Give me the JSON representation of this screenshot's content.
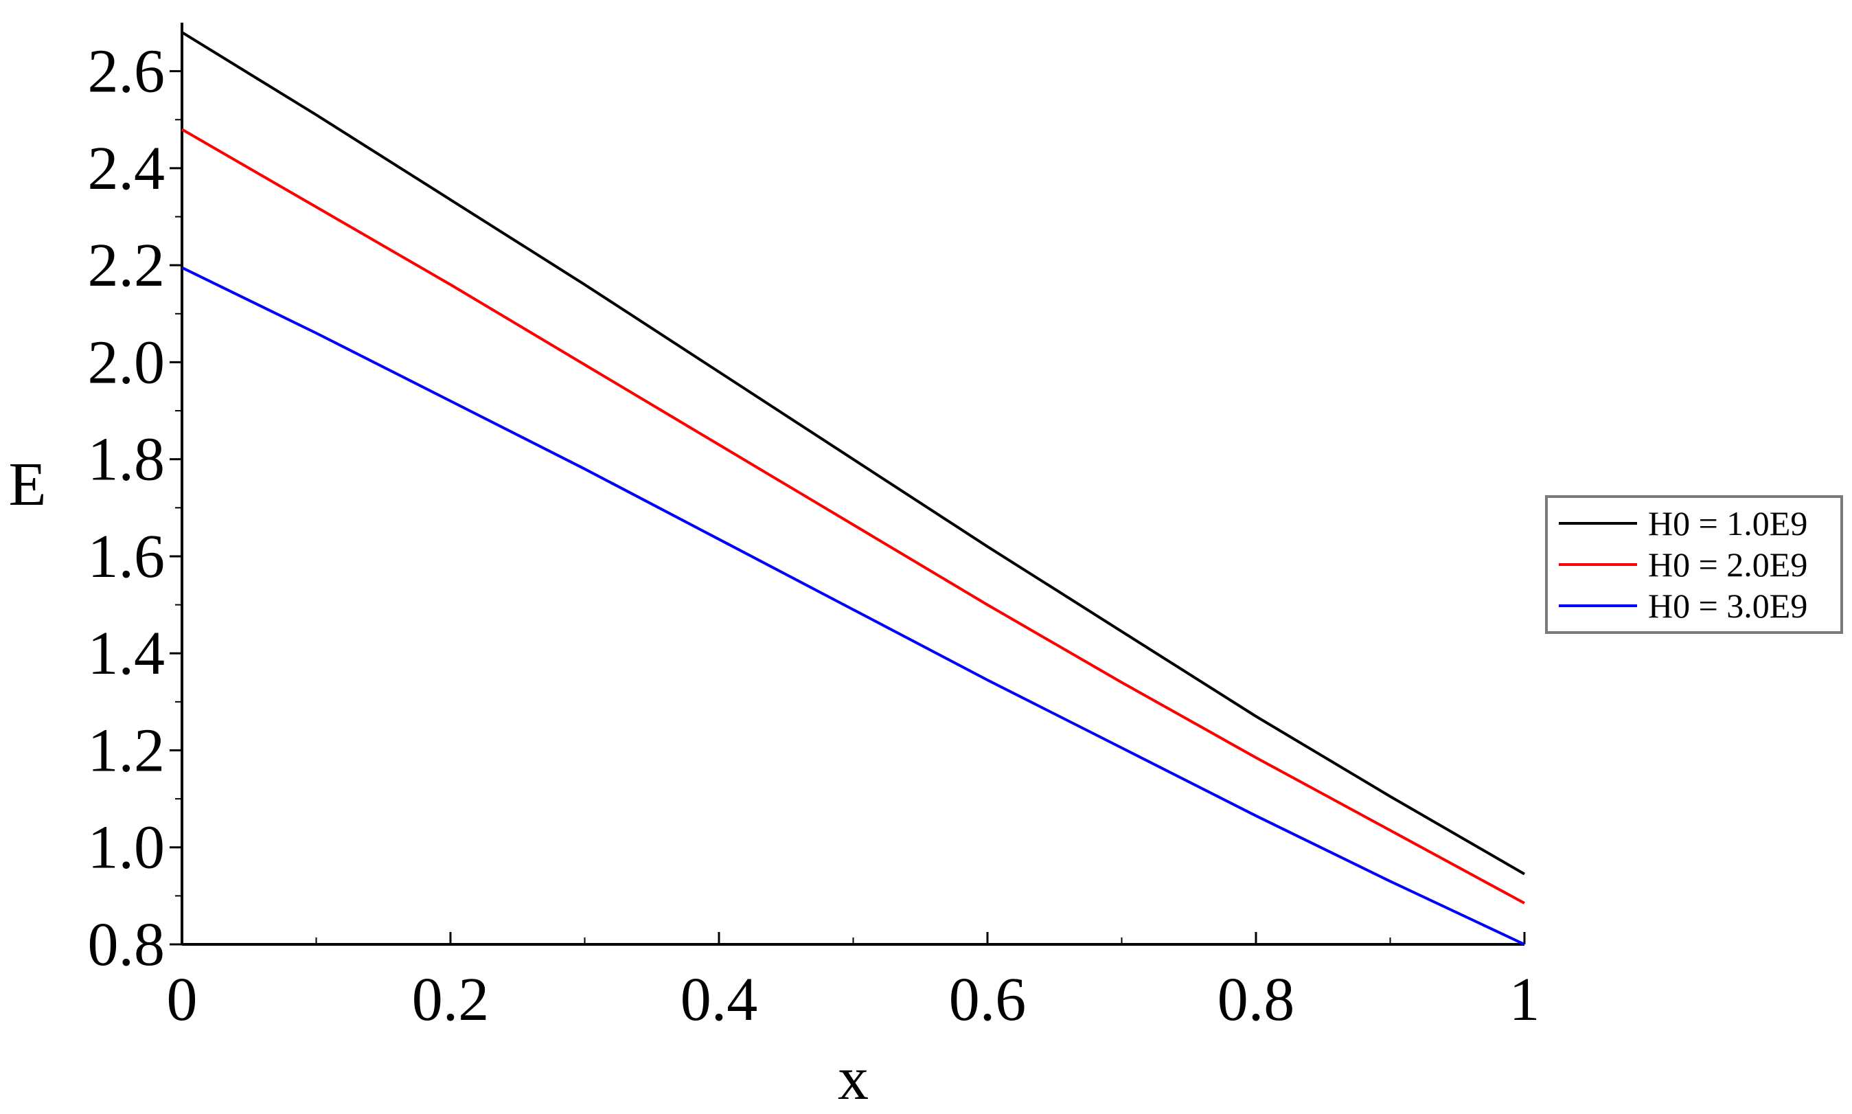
{
  "chart_data": {
    "type": "line",
    "title": "",
    "xlabel": "x",
    "ylabel": "E",
    "xlim": [
      0,
      1
    ],
    "ylim": [
      0.8,
      2.7
    ],
    "x_ticks": [
      0,
      0.2,
      0.4,
      0.6,
      0.8,
      1
    ],
    "x_tick_labels": [
      "0",
      "0.2",
      "0.4",
      "0.6",
      "0.8",
      "1"
    ],
    "y_ticks": [
      0.8,
      1.0,
      1.2,
      1.4,
      1.6,
      1.8,
      2.0,
      2.2,
      2.4,
      2.6
    ],
    "y_tick_labels": [
      "0.8",
      "1.0",
      "1.2",
      "1.4",
      "1.6",
      "1.8",
      "2.0",
      "2.2",
      "2.4",
      "2.6"
    ],
    "grid": false,
    "legend_position": "right",
    "x": [
      0,
      0.1,
      0.2,
      0.3,
      0.4,
      0.5,
      0.6,
      0.7,
      0.8,
      0.9,
      1.0
    ],
    "series": [
      {
        "name": "H0 = 1.0E9",
        "color": "#000000",
        "values": [
          2.68,
          2.51,
          2.335,
          2.16,
          1.98,
          1.8,
          1.62,
          1.445,
          1.27,
          1.105,
          0.945
        ]
      },
      {
        "name": "H0 = 2.0E9",
        "color": "#ff0000",
        "values": [
          2.48,
          2.32,
          2.16,
          1.995,
          1.83,
          1.665,
          1.5,
          1.34,
          1.185,
          1.035,
          0.885
        ]
      },
      {
        "name": "H0 = 3.0E9",
        "color": "#0000ff",
        "values": [
          2.195,
          2.06,
          1.92,
          1.78,
          1.635,
          1.49,
          1.345,
          1.205,
          1.065,
          0.93,
          0.8
        ]
      }
    ]
  }
}
